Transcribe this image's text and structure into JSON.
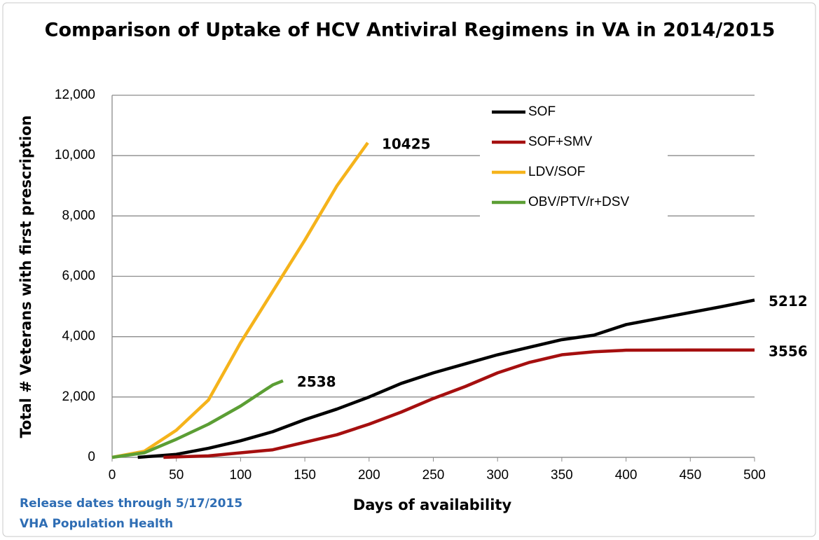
{
  "chart_data": {
    "type": "line",
    "title": "Comparison of Uptake of HCV Antiviral Regimens in VA in 2014/2015",
    "x_label": "Days of availability",
    "y_label": "Total # Veterans with first prescription",
    "notes": [
      "Release dates through  5/17/2015",
      "VHA Population  Health"
    ],
    "xlim": [
      0,
      500
    ],
    "xticks": [
      0,
      50,
      100,
      150,
      200,
      250,
      300,
      350,
      400,
      450,
      500
    ],
    "ylim": [
      0,
      12000
    ],
    "yticks": [
      0,
      {
        "value": 2000,
        "label": "2,000"
      },
      {
        "value": 4000,
        "label": "4,000"
      },
      {
        "value": 6000,
        "label": "6,000"
      },
      {
        "value": 8000,
        "label": "8,000"
      },
      {
        "value": 10000,
        "label": "10,000"
      },
      {
        "value": 12000,
        "label": "12,000"
      }
    ],
    "grid": true,
    "legend": "upper right",
    "series": [
      {
        "name": "SOF",
        "color": "#000000",
        "x": [
          20,
          50,
          75,
          100,
          125,
          150,
          175,
          200,
          225,
          250,
          275,
          300,
          325,
          350,
          375,
          400,
          425,
          450,
          475,
          500
        ],
        "values": [
          0,
          100,
          300,
          550,
          850,
          1250,
          1600,
          2000,
          2450,
          2800,
          3100,
          3400,
          3650,
          3900,
          4050,
          4400,
          4600,
          4800,
          5000,
          5212
        ]
      },
      {
        "name": "SOF+SMV",
        "color": "#a50f0f",
        "x": [
          40,
          75,
          100,
          125,
          150,
          175,
          200,
          225,
          250,
          275,
          300,
          325,
          350,
          375,
          400,
          450,
          500
        ],
        "values": [
          0,
          50,
          150,
          250,
          500,
          750,
          1100,
          1500,
          1950,
          2350,
          2800,
          3150,
          3400,
          3500,
          3550,
          3556,
          3556
        ]
      },
      {
        "name": "LDV/SOF",
        "color": "#f5b31b",
        "x": [
          0,
          25,
          50,
          75,
          100,
          125,
          150,
          175,
          199
        ],
        "values": [
          0,
          200,
          900,
          1900,
          3800,
          5500,
          7200,
          9000,
          10425
        ]
      },
      {
        "name": "OBV/PTV/r+DSV",
        "color": "#5b9e34",
        "x": [
          0,
          25,
          50,
          75,
          100,
          125,
          133
        ],
        "values": [
          0,
          150,
          600,
          1100,
          1700,
          2400,
          2538
        ]
      }
    ]
  }
}
